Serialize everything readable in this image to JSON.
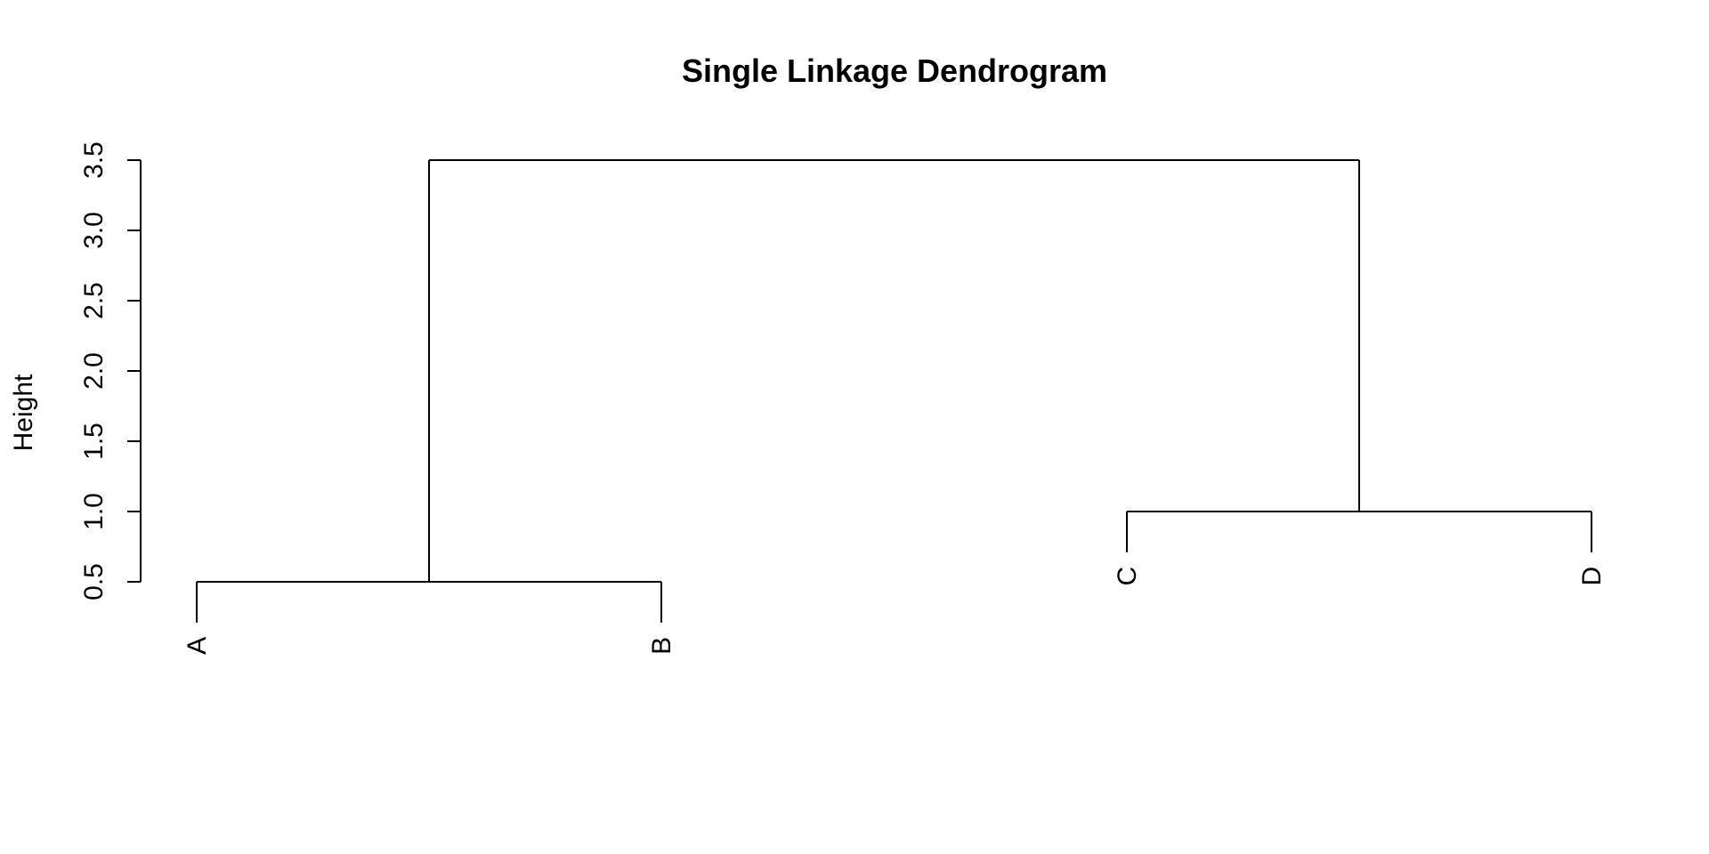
{
  "chart_data": {
    "type": "dendrogram",
    "title": "Single Linkage Dendrogram",
    "ylabel": "Height",
    "xlabel": "",
    "yticks": [
      "0.5",
      "1.0",
      "1.5",
      "2.0",
      "2.5",
      "3.0",
      "3.5"
    ],
    "ylim": [
      0.5,
      3.5
    ],
    "leaves": [
      "A",
      "B",
      "C",
      "D"
    ],
    "merges": [
      {
        "left": "A",
        "right": "B",
        "height": 0.5
      },
      {
        "left": "C",
        "right": "D",
        "height": 1.0
      },
      {
        "left": "A-B",
        "right": "C-D",
        "height": 3.5
      }
    ]
  }
}
